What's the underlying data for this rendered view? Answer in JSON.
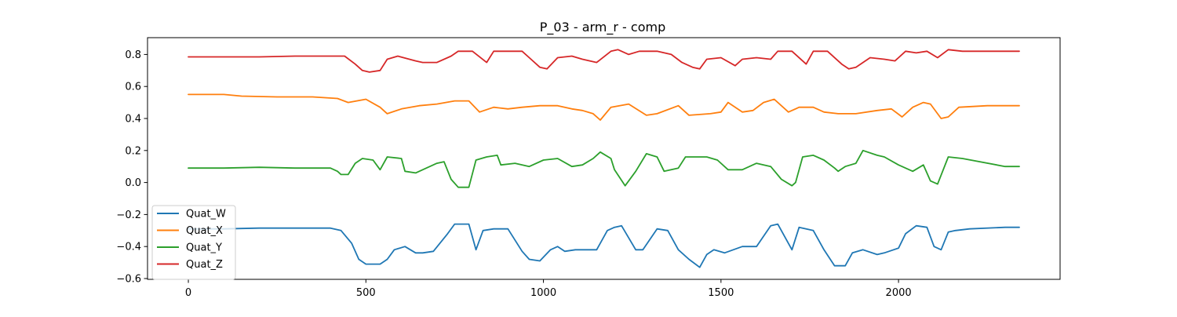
{
  "chart_data": {
    "type": "line",
    "title": "P_03 - arm_r - comp",
    "xlabel": "",
    "ylabel": "",
    "xlim": [
      -115,
      2455
    ],
    "ylim": [
      -0.605,
      0.905
    ],
    "xticks": [
      0,
      500,
      1000,
      1500,
      2000
    ],
    "xtick_labels": [
      "0",
      "500",
      "1000",
      "1500",
      "2000"
    ],
    "yticks": [
      -0.6,
      -0.4,
      -0.2,
      0.0,
      0.2,
      0.4,
      0.6,
      0.8
    ],
    "ytick_labels": [
      "−0.6",
      "−0.4",
      "−0.2",
      "0.0",
      "0.2",
      "0.4",
      "0.6",
      "0.8"
    ],
    "grid": false,
    "legend_position": "lower-left",
    "series": [
      {
        "name": "Quat_W",
        "color": "#1f77b4",
        "x": [
          0,
          100,
          200,
          300,
          400,
          430,
          460,
          480,
          500,
          540,
          560,
          580,
          610,
          640,
          660,
          690,
          730,
          750,
          790,
          810,
          830,
          860,
          880,
          900,
          940,
          960,
          990,
          1020,
          1040,
          1060,
          1090,
          1120,
          1150,
          1180,
          1200,
          1220,
          1260,
          1280,
          1320,
          1350,
          1380,
          1410,
          1440,
          1460,
          1480,
          1510,
          1560,
          1600,
          1640,
          1660,
          1700,
          1720,
          1760,
          1790,
          1820,
          1850,
          1870,
          1900,
          1940,
          1960,
          2000,
          2020,
          2050,
          2080,
          2100,
          2120,
          2140,
          2160,
          2200,
          2300,
          2340
        ],
        "y": [
          -0.29,
          -0.29,
          -0.285,
          -0.285,
          -0.285,
          -0.3,
          -0.38,
          -0.48,
          -0.51,
          -0.51,
          -0.48,
          -0.42,
          -0.4,
          -0.44,
          -0.44,
          -0.43,
          -0.32,
          -0.26,
          -0.26,
          -0.42,
          -0.3,
          -0.29,
          -0.29,
          -0.29,
          -0.43,
          -0.48,
          -0.49,
          -0.42,
          -0.4,
          -0.43,
          -0.42,
          -0.42,
          -0.42,
          -0.3,
          -0.28,
          -0.27,
          -0.42,
          -0.42,
          -0.29,
          -0.3,
          -0.42,
          -0.48,
          -0.53,
          -0.45,
          -0.42,
          -0.44,
          -0.4,
          -0.4,
          -0.27,
          -0.26,
          -0.42,
          -0.28,
          -0.3,
          -0.42,
          -0.52,
          -0.52,
          -0.44,
          -0.42,
          -0.45,
          -0.44,
          -0.41,
          -0.32,
          -0.27,
          -0.28,
          -0.4,
          -0.42,
          -0.31,
          -0.3,
          -0.29,
          -0.28,
          -0.28
        ]
      },
      {
        "name": "Quat_X",
        "color": "#ff7f0e",
        "x": [
          0,
          100,
          150,
          250,
          350,
          420,
          450,
          500,
          540,
          560,
          600,
          650,
          700,
          750,
          790,
          820,
          860,
          900,
          940,
          990,
          1040,
          1080,
          1110,
          1140,
          1160,
          1190,
          1240,
          1290,
          1320,
          1380,
          1410,
          1440,
          1470,
          1500,
          1520,
          1560,
          1590,
          1620,
          1650,
          1690,
          1720,
          1760,
          1790,
          1830,
          1880,
          1940,
          1980,
          2010,
          2040,
          2070,
          2090,
          2120,
          2140,
          2170,
          2250,
          2340
        ],
        "y": [
          0.55,
          0.55,
          0.54,
          0.535,
          0.535,
          0.525,
          0.5,
          0.52,
          0.47,
          0.43,
          0.46,
          0.48,
          0.49,
          0.51,
          0.51,
          0.44,
          0.47,
          0.46,
          0.47,
          0.48,
          0.48,
          0.46,
          0.45,
          0.43,
          0.39,
          0.47,
          0.49,
          0.42,
          0.43,
          0.48,
          0.42,
          0.425,
          0.43,
          0.44,
          0.5,
          0.44,
          0.45,
          0.5,
          0.52,
          0.44,
          0.47,
          0.47,
          0.44,
          0.43,
          0.43,
          0.45,
          0.46,
          0.41,
          0.47,
          0.5,
          0.49,
          0.4,
          0.41,
          0.47,
          0.48,
          0.48
        ]
      },
      {
        "name": "Quat_Y",
        "color": "#2ca02c",
        "x": [
          0,
          100,
          200,
          300,
          400,
          420,
          430,
          450,
          470,
          490,
          520,
          540,
          560,
          600,
          610,
          640,
          660,
          700,
          720,
          740,
          760,
          790,
          810,
          840,
          870,
          880,
          920,
          960,
          1000,
          1040,
          1080,
          1110,
          1140,
          1160,
          1190,
          1200,
          1230,
          1260,
          1290,
          1320,
          1340,
          1380,
          1400,
          1460,
          1490,
          1520,
          1560,
          1600,
          1640,
          1670,
          1700,
          1710,
          1730,
          1760,
          1790,
          1820,
          1830,
          1850,
          1880,
          1900,
          1940,
          1960,
          2000,
          2010,
          2040,
          2070,
          2090,
          2110,
          2140,
          2180,
          2300,
          2340
        ],
        "y": [
          0.09,
          0.09,
          0.095,
          0.09,
          0.09,
          0.07,
          0.05,
          0.05,
          0.12,
          0.15,
          0.14,
          0.08,
          0.16,
          0.15,
          0.07,
          0.06,
          0.08,
          0.12,
          0.13,
          0.02,
          -0.03,
          -0.03,
          0.14,
          0.16,
          0.17,
          0.11,
          0.12,
          0.1,
          0.14,
          0.15,
          0.1,
          0.11,
          0.15,
          0.19,
          0.15,
          0.08,
          -0.02,
          0.07,
          0.18,
          0.16,
          0.07,
          0.09,
          0.16,
          0.16,
          0.14,
          0.08,
          0.08,
          0.12,
          0.1,
          0.02,
          -0.02,
          0.0,
          0.16,
          0.17,
          0.14,
          0.09,
          0.07,
          0.1,
          0.12,
          0.2,
          0.17,
          0.16,
          0.11,
          0.1,
          0.07,
          0.11,
          0.01,
          -0.01,
          0.16,
          0.15,
          0.1,
          0.1
        ]
      },
      {
        "name": "Quat_Z",
        "color": "#d62728",
        "x": [
          0,
          100,
          200,
          300,
          400,
          440,
          470,
          490,
          510,
          540,
          560,
          590,
          640,
          660,
          700,
          740,
          760,
          800,
          840,
          860,
          900,
          940,
          960,
          990,
          1010,
          1040,
          1080,
          1110,
          1150,
          1190,
          1210,
          1240,
          1270,
          1320,
          1360,
          1390,
          1420,
          1440,
          1460,
          1500,
          1540,
          1560,
          1600,
          1640,
          1660,
          1700,
          1740,
          1760,
          1800,
          1840,
          1860,
          1880,
          1920,
          1960,
          1990,
          2020,
          2050,
          2080,
          2110,
          2140,
          2180,
          2340
        ],
        "y": [
          0.785,
          0.785,
          0.785,
          0.79,
          0.79,
          0.79,
          0.74,
          0.7,
          0.69,
          0.7,
          0.77,
          0.79,
          0.76,
          0.75,
          0.75,
          0.79,
          0.82,
          0.82,
          0.75,
          0.82,
          0.82,
          0.82,
          0.78,
          0.72,
          0.71,
          0.78,
          0.79,
          0.77,
          0.75,
          0.82,
          0.83,
          0.8,
          0.82,
          0.82,
          0.8,
          0.75,
          0.72,
          0.71,
          0.77,
          0.78,
          0.73,
          0.77,
          0.78,
          0.77,
          0.82,
          0.82,
          0.74,
          0.82,
          0.82,
          0.74,
          0.71,
          0.72,
          0.78,
          0.77,
          0.76,
          0.82,
          0.81,
          0.82,
          0.78,
          0.83,
          0.82,
          0.82
        ]
      }
    ]
  }
}
